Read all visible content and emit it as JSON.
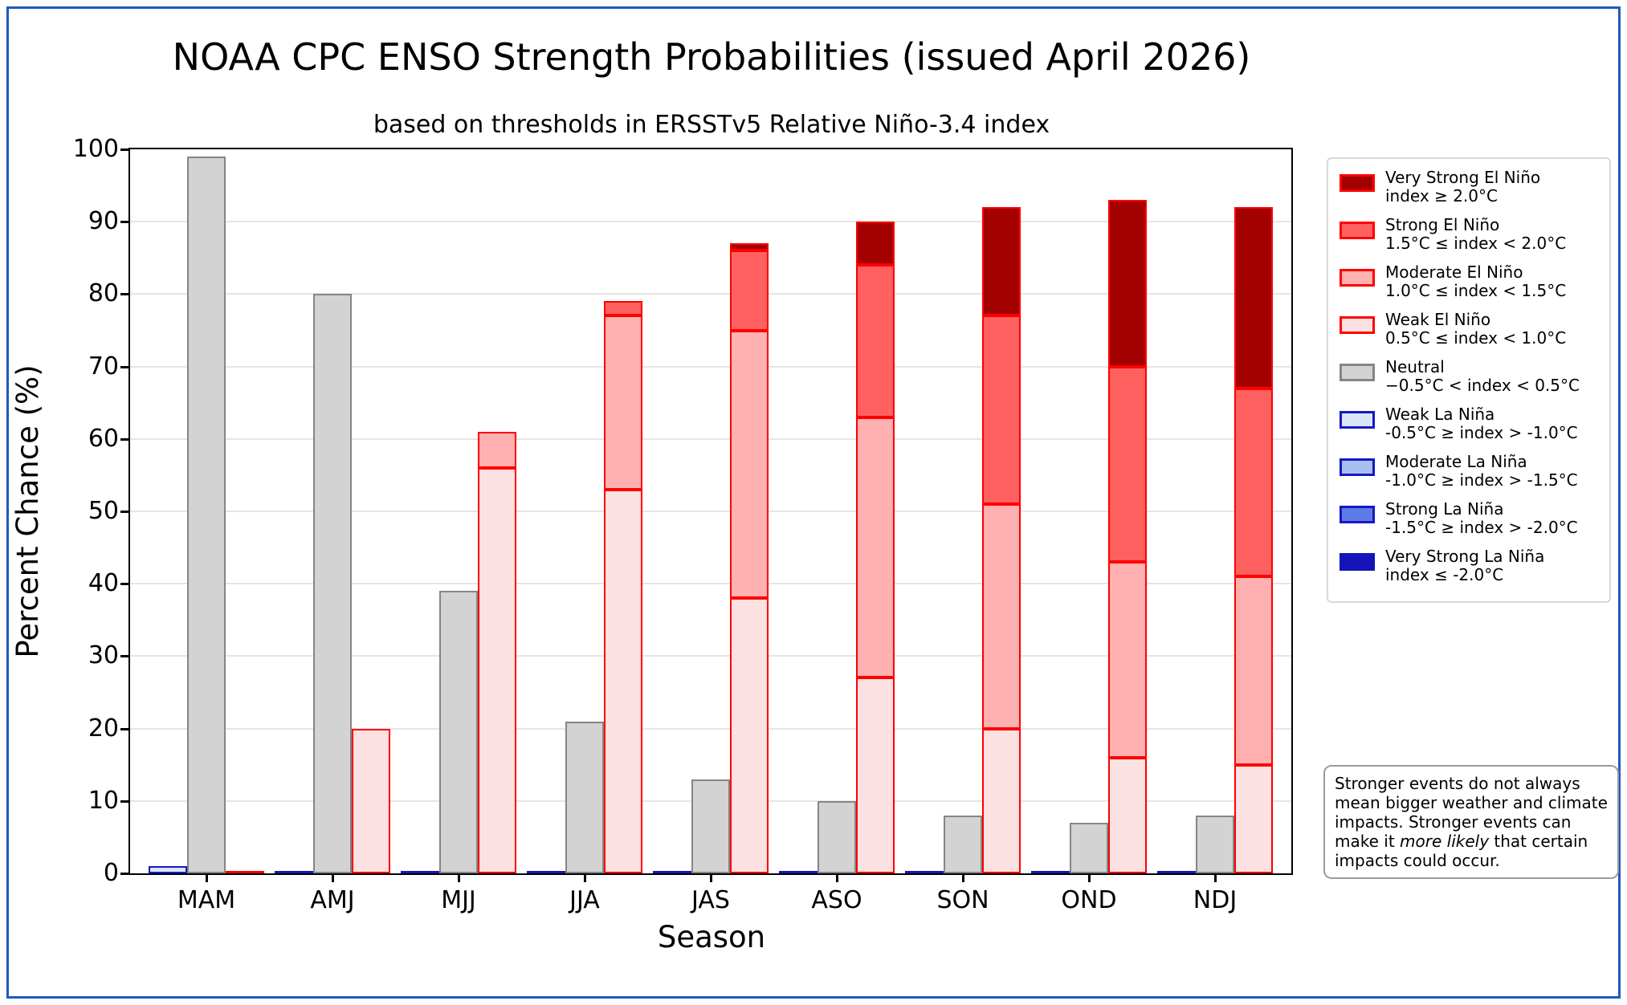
{
  "figure": {
    "title": "NOAA CPC ENSO Strength Probabilities (issued April 2026)",
    "subtitle": "based on thresholds in ERSSTv5 Relative Niño-3.4 index",
    "border_color": "#1e5bbf"
  },
  "chart_data": {
    "type": "bar",
    "variant": "grouped-stacked",
    "title": "NOAA CPC ENSO Strength Probabilities (issued April 2026)",
    "subtitle": "based on thresholds in ERSSTv5 Relative Niño-3.4 index",
    "xlabel": "Season",
    "ylabel": "Percent Chance (%)",
    "ylim": [
      0,
      100
    ],
    "ytick_step": 10,
    "grid": true,
    "legend_position": "outside-right",
    "categories": [
      "MAM",
      "AMJ",
      "MJJ",
      "JJA",
      "JAS",
      "ASO",
      "SON",
      "OND",
      "NDJ"
    ],
    "group_layout": "each season has three bars: La Niña stack, Neutral, El Niño stack",
    "series": [
      {
        "name": "Weak La Niña",
        "family": "la_nina",
        "stack_order": 0,
        "fill": "#dbe5f8",
        "edge": "#1717c3",
        "values": [
          1,
          0,
          0,
          0,
          0,
          0,
          0,
          0,
          0
        ]
      },
      {
        "name": "Moderate La Niña",
        "family": "la_nina",
        "stack_order": 1,
        "fill": "#a8c0ef",
        "edge": "#1717c3",
        "values": [
          0,
          0,
          0,
          0,
          0,
          0,
          0,
          0,
          0
        ]
      },
      {
        "name": "Strong La Niña",
        "family": "la_nina",
        "stack_order": 2,
        "fill": "#5d7ce8",
        "edge": "#1717c3",
        "values": [
          0,
          0,
          0,
          0,
          0,
          0,
          0,
          0,
          0
        ]
      },
      {
        "name": "Very Strong La Niña",
        "family": "la_nina",
        "stack_order": 3,
        "fill": "#1414b8",
        "edge": "#1414b8",
        "values": [
          0,
          0,
          0,
          0,
          0,
          0,
          0,
          0,
          0
        ]
      },
      {
        "name": "Neutral",
        "family": "neutral",
        "stack_order": 0,
        "fill": "#d3d3d3",
        "edge": "#858585",
        "values": [
          99,
          80,
          39,
          21,
          13,
          10,
          8,
          7,
          8
        ]
      },
      {
        "name": "Weak El Niño",
        "family": "el_nino",
        "stack_order": 0,
        "fill": "#fbe1e1",
        "edge": "#ff0000",
        "values": [
          0,
          20,
          56,
          53,
          38,
          27,
          20,
          16,
          15
        ]
      },
      {
        "name": "Moderate El Niño",
        "family": "el_nino",
        "stack_order": 1,
        "fill": "#ffb0b0",
        "edge": "#ff0000",
        "values": [
          0,
          0,
          5,
          24,
          37,
          36,
          31,
          27,
          26
        ]
      },
      {
        "name": "Strong El Niño",
        "family": "el_nino",
        "stack_order": 2,
        "fill": "#ff6161",
        "edge": "#ff0000",
        "values": [
          0,
          0,
          0,
          2,
          11,
          21,
          26,
          27,
          26
        ]
      },
      {
        "name": "Very Strong El Niño",
        "family": "el_nino",
        "stack_order": 3,
        "fill": "#a30000",
        "edge": "#ff0000",
        "values": [
          0,
          0,
          0,
          0,
          1,
          6,
          15,
          23,
          25
        ]
      }
    ],
    "zero_stack_line_colors": {
      "la_nina": "#1414b8",
      "el_nino": "#ff0000"
    }
  },
  "legend": {
    "items": [
      {
        "label": "Very Strong El Niño",
        "range": "index ≥ 2.0°C",
        "fill": "#a30000",
        "edge": "#ff0000"
      },
      {
        "label": "Strong El Niño",
        "range": "1.5°C ≤ index < 2.0°C",
        "fill": "#ff6161",
        "edge": "#ff0000"
      },
      {
        "label": "Moderate El Niño",
        "range": "1.0°C ≤ index < 1.5°C",
        "fill": "#ffb0b0",
        "edge": "#ff0000"
      },
      {
        "label": "Weak El Niño",
        "range": "0.5°C ≤ index < 1.0°C",
        "fill": "#fbe1e1",
        "edge": "#ff0000"
      },
      {
        "label": "Neutral",
        "range": "−0.5°C < index < 0.5°C",
        "fill": "#d3d3d3",
        "edge": "#858585"
      },
      {
        "label": "Weak La Niña",
        "range": "-0.5°C ≥ index > -1.0°C",
        "fill": "#dbe5f8",
        "edge": "#1717c3"
      },
      {
        "label": "Moderate La Niña",
        "range": "-1.0°C ≥ index > -1.5°C",
        "fill": "#a8c0ef",
        "edge": "#1717c3"
      },
      {
        "label": "Strong La Niña",
        "range": "-1.5°C ≥ index > -2.0°C",
        "fill": "#5d7ce8",
        "edge": "#1717c3"
      },
      {
        "label": "Very Strong La Niña",
        "range": "index ≤ -2.0°C",
        "fill": "#1414b8",
        "edge": "#1414b8"
      }
    ]
  },
  "note": {
    "text_before_italic": "Stronger events do not always mean bigger weather and climate impacts. Stronger events can make it ",
    "italic_text": "more likely",
    "text_after_italic": " that certain impacts could occur."
  }
}
